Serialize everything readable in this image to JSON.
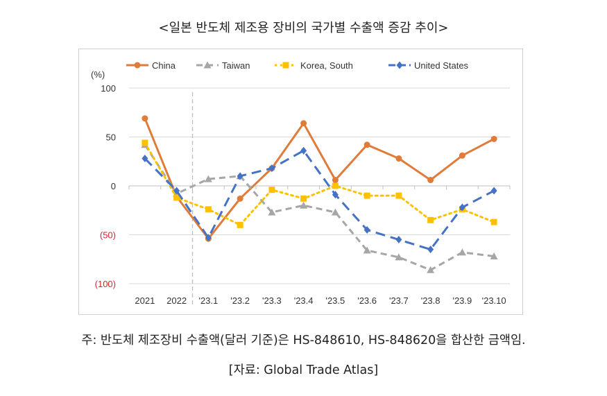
{
  "title": "<일본 반도체 제조용 장비의 국가별 수출액 증감 추이>",
  "note": "주: 반도체 제조장비 수출액(달러 기준)은 HS-848610, HS-848620을 합산한 금액임.",
  "source": "[자료: Global Trade Atlas]",
  "chart_data": {
    "type": "line",
    "ylabel": "(%)",
    "ylim": [
      -100,
      100
    ],
    "yticks": [
      100,
      50,
      0,
      -50,
      -100
    ],
    "ytick_labels": [
      "100",
      "50",
      "0",
      "(50)",
      "(100)"
    ],
    "negative_tick_color": "#d9232e",
    "categories": [
      "2021",
      "2022",
      "'23.1",
      "'23.2",
      "'23.3",
      "'23.4",
      "'23.5",
      "'23.6",
      "'23.7",
      "'23.8",
      "'23.9",
      "'23.10"
    ],
    "legend_position": "top",
    "series": [
      {
        "name": "China",
        "color": "#e07b39",
        "style": "solid",
        "marker": "circle",
        "values": [
          69,
          -11,
          -54,
          -13,
          18,
          64,
          6,
          42,
          28,
          6,
          31,
          48
        ]
      },
      {
        "name": "Taiwan",
        "color": "#a6a6a6",
        "style": "dash",
        "marker": "triangle",
        "values": [
          42,
          -8,
          7,
          10,
          -27,
          -20,
          -27,
          -66,
          -73,
          -86,
          -68,
          -72
        ]
      },
      {
        "name": "Korea, South",
        "color": "#ffc000",
        "style": "dot",
        "marker": "square",
        "values": [
          44,
          -12,
          -24,
          -40,
          -4,
          -13,
          0,
          -10,
          -10,
          -35,
          -24,
          -37
        ]
      },
      {
        "name": "United States",
        "color": "#4472c4",
        "style": "longdash",
        "marker": "diamond",
        "values": [
          28,
          -5,
          -53,
          10,
          18,
          36,
          -9,
          -45,
          -55,
          -65,
          -22,
          -5
        ]
      }
    ]
  }
}
